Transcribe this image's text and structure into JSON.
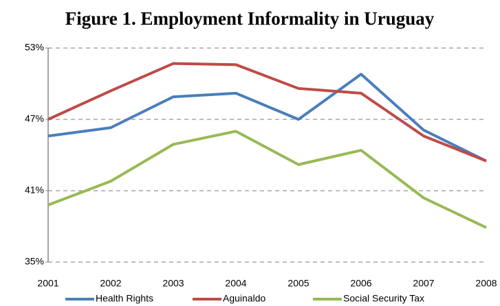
{
  "chart_data": {
    "type": "line",
    "title": "Figure 1. Employment Informality in Uruguay",
    "categories": [
      "2001",
      "2002",
      "2003",
      "2004",
      "2005",
      "2006",
      "2007",
      "2008"
    ],
    "series": [
      {
        "name": "Health Rights",
        "color": "#4a7ebb",
        "values": [
          45.6,
          46.3,
          48.9,
          49.2,
          47.0,
          50.8,
          46.1,
          43.5
        ]
      },
      {
        "name": "Aguinaldo",
        "color": "#be4b48",
        "values": [
          47.0,
          49.4,
          51.7,
          51.6,
          49.6,
          49.2,
          45.6,
          43.5
        ]
      },
      {
        "name": "Social Security Tax",
        "color": "#98b954",
        "values": [
          39.8,
          41.8,
          44.9,
          46.0,
          43.2,
          44.4,
          40.4,
          37.9
        ]
      }
    ],
    "ylim": [
      35,
      53
    ],
    "yticks": [
      {
        "value": 35,
        "label": "35%"
      },
      {
        "value": 41,
        "label": "41%"
      },
      {
        "value": 47,
        "label": "47%"
      },
      {
        "value": 53,
        "label": "53%"
      }
    ],
    "grid": true,
    "legend": "bottom"
  }
}
